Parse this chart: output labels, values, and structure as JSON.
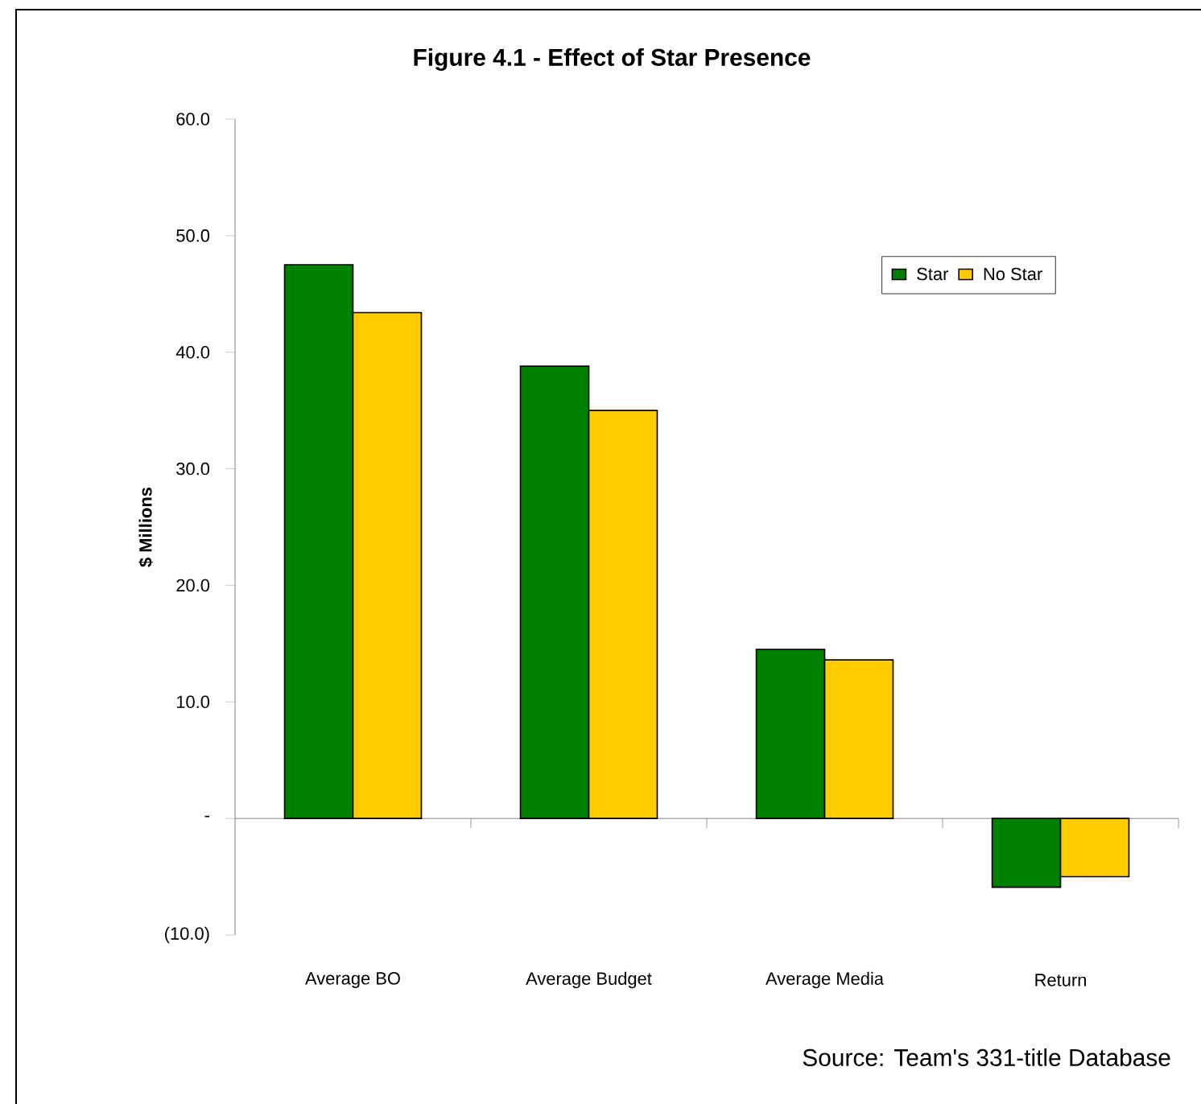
{
  "chart_data": {
    "type": "bar",
    "title": "Figure 4.1 - Effect of Star Presence",
    "ylabel": "$ Millions",
    "categories": [
      "Average BO",
      "Average Budget",
      "Average Media",
      "Return"
    ],
    "series": [
      {
        "name": "Star",
        "color": "#008000",
        "values": [
          47.5,
          38.8,
          14.5,
          -5.9
        ]
      },
      {
        "name": "No Star",
        "color": "#ffcc00",
        "values": [
          43.4,
          35.0,
          13.6,
          -5.0
        ]
      }
    ],
    "ylim": [
      -10,
      60
    ],
    "yticks": [
      {
        "value": -10,
        "label": "(10.0)"
      },
      {
        "value": 0,
        "label": "-"
      },
      {
        "value": 10,
        "label": "10.0"
      },
      {
        "value": 20,
        "label": "20.0"
      },
      {
        "value": 30,
        "label": "30.0"
      },
      {
        "value": 40,
        "label": "40.0"
      },
      {
        "value": 50,
        "label": "50.0"
      },
      {
        "value": 60,
        "label": "60.0"
      }
    ],
    "legend": "top right",
    "annotations": [
      "Source: Team's 331-title Database"
    ]
  }
}
